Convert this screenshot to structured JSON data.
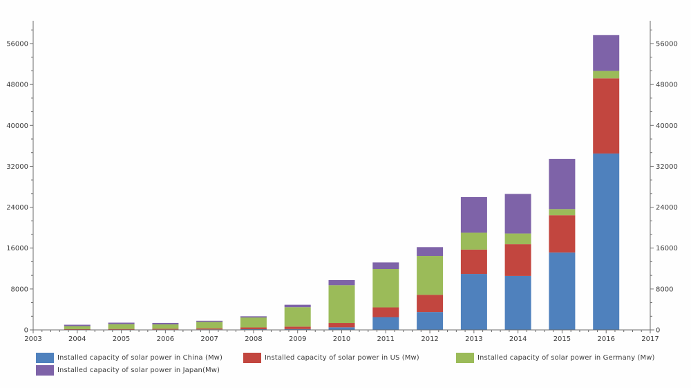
{
  "chart_data": {
    "type": "bar",
    "stacked": true,
    "title": "",
    "xlabel": "",
    "ylabel": "",
    "categories": [
      2004,
      2005,
      2006,
      2007,
      2008,
      2009,
      2010,
      2011,
      2012,
      2013,
      2014,
      2015,
      2016
    ],
    "series": [
      {
        "name": "Installed capacity of solar power in China (Mw)",
        "color": "#4F81BD",
        "values": [
          50,
          70,
          80,
          100,
          140,
          160,
          500,
          2500,
          3500,
          10950,
          10560,
          15130,
          34500
        ]
      },
      {
        "name": "Installed capacity of solar power in US (Mw)",
        "color": "#C2463F",
        "values": [
          90,
          110,
          145,
          205,
          340,
          480,
          850,
          1900,
          3370,
          4760,
          6200,
          7300,
          14700
        ]
      },
      {
        "name": "Installed capacity of solar power in Germany (Mw)",
        "color": "#9BBB59",
        "values": [
          600,
          950,
          850,
          1270,
          1950,
          3800,
          7400,
          7500,
          7600,
          3300,
          2100,
          1200,
          1450
        ]
      },
      {
        "name": "Installed capacity of solar power in Japan(Mw)",
        "color": "#7E63A8",
        "values": [
          270,
          290,
          290,
          210,
          230,
          480,
          990,
          1300,
          1720,
          6970,
          7740,
          9800,
          7000
        ]
      }
    ],
    "x_ticks": [
      2003,
      2004,
      2005,
      2006,
      2007,
      2008,
      2009,
      2010,
      2011,
      2012,
      2013,
      2014,
      2015,
      2016,
      2017
    ],
    "y_ticks": [
      0,
      8000,
      16000,
      24000,
      32000,
      40000,
      48000,
      56000
    ],
    "y_minor_step": 2666.67,
    "xlim": [
      2003,
      2017
    ],
    "ylim": [
      0,
      60500
    ],
    "grid": false,
    "dual_y_axis": true,
    "legend_position": "bottom-left",
    "axis_color": "#6a6a6a",
    "tick_label_color": "#3c3c3c"
  }
}
